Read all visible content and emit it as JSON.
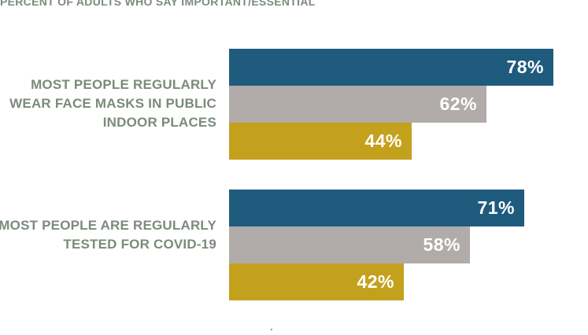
{
  "chart_data": {
    "type": "bar",
    "orientation": "horizontal",
    "subtitle": "PERCENT OF ADULTS WHO SAY IMPORTANT/ESSENTIAL",
    "categories": [
      "MOST PEOPLE REGULARLY WEAR FACE MASKS IN PUBLIC INDOOR PLACES",
      "MOST PEOPLE ARE REGULARLY TESTED FOR COVID-19"
    ],
    "series": [
      {
        "color": "#1f5b7d",
        "values": [
          78,
          71
        ],
        "labels": [
          "78%",
          "71%"
        ]
      },
      {
        "color": "#b1acaa",
        "values": [
          62,
          58
        ],
        "labels": [
          "62%",
          "58%"
        ]
      },
      {
        "color": "#c4a11d",
        "values": [
          44,
          42
        ],
        "labels": [
          "44%",
          "42%"
        ]
      }
    ],
    "xlim": [
      0,
      100
    ],
    "legend": "none"
  }
}
